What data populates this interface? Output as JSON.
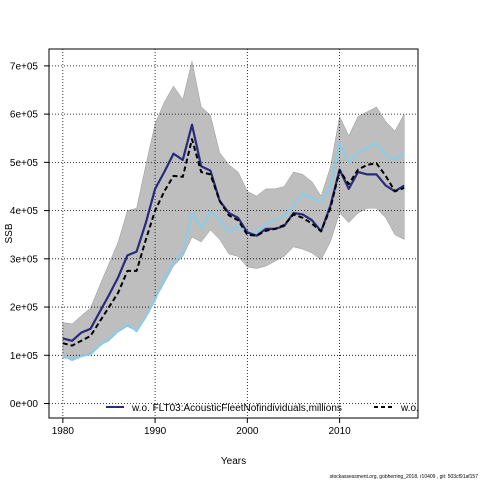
{
  "chart_data": {
    "type": "line",
    "title": "",
    "xlabel": "Years",
    "ylabel": "SSB",
    "xlim": [
      1978.5,
      2018.5
    ],
    "ylim": [
      -30000,
      735000
    ],
    "xticks": [
      1980,
      1990,
      2000,
      2010
    ],
    "yticks": [
      0,
      100000,
      200000,
      300000,
      400000,
      500000,
      600000,
      700000
    ],
    "yticklabels": [
      "0e+00",
      "1e+05",
      "2e+05",
      "3e+05",
      "4e+05",
      "5e+05",
      "6e+05",
      "7e+05"
    ],
    "grid": true,
    "legend": {
      "placement": "bottom",
      "labels": [
        "w.o. FLT03:AcousticFleetNofindividuals,millions",
        "w.o."
      ]
    },
    "colors": {
      "band": "#bebebe",
      "main": "#2a2a7a",
      "dashed": "#000000",
      "alt": "#87ceeb",
      "grid": "#000000"
    },
    "years": [
      1980,
      1981,
      1982,
      1983,
      1984,
      1985,
      1986,
      1987,
      1988,
      1989,
      1990,
      1991,
      1992,
      1993,
      1994,
      1995,
      1996,
      1997,
      1998,
      1999,
      2000,
      2001,
      2002,
      2003,
      2004,
      2005,
      2006,
      2007,
      2008,
      2009,
      2010,
      2011,
      2012,
      2013,
      2014,
      2015,
      2016,
      2017
    ],
    "series": [
      {
        "style": "solid-dark",
        "values": [
          135000,
          130000,
          147000,
          155000,
          190000,
          225000,
          262000,
          307000,
          315000,
          375000,
          445000,
          480000,
          518000,
          505000,
          578000,
          492000,
          483000,
          420000,
          395000,
          385000,
          355000,
          348000,
          362000,
          362000,
          368000,
          395000,
          392000,
          380000,
          357000,
          410000,
          485000,
          445000,
          480000,
          475000,
          475000,
          452000,
          440000,
          452000
        ]
      },
      {
        "style": "dashed-black",
        "values": [
          125000,
          120000,
          130000,
          140000,
          170000,
          200000,
          230000,
          275000,
          275000,
          340000,
          400000,
          440000,
          472000,
          470000,
          548000,
          480000,
          475000,
          420000,
          390000,
          380000,
          350000,
          348000,
          358000,
          362000,
          370000,
          392000,
          385000,
          373000,
          357000,
          405000,
          483000,
          455000,
          485000,
          495000,
          498000,
          472000,
          440000,
          447000
        ]
      },
      {
        "style": "solid-lightblue",
        "values": [
          100000,
          90000,
          98000,
          102000,
          120000,
          135000,
          150000,
          165000,
          150000,
          180000,
          215000,
          260000,
          292000,
          312000,
          395000,
          365000,
          398000,
          382000,
          355000,
          370000,
          353000,
          355000,
          372000,
          380000,
          390000,
          410000,
          435000,
          425000,
          418000,
          450000,
          540000,
          500000,
          520000,
          530000,
          540000,
          515000,
          505000,
          520000
        ]
      }
    ],
    "band_lower": [
      95000,
      92000,
      98000,
      105000,
      120000,
      130000,
      148000,
      160000,
      150000,
      180000,
      215000,
      250000,
      285000,
      305000,
      345000,
      335000,
      360000,
      340000,
      310000,
      305000,
      283000,
      280000,
      285000,
      295000,
      305000,
      325000,
      320000,
      312000,
      298000,
      335000,
      395000,
      375000,
      395000,
      405000,
      405000,
      385000,
      350000,
      340000
    ],
    "band_upper": [
      168000,
      165000,
      182000,
      198000,
      245000,
      290000,
      335000,
      400000,
      405000,
      495000,
      580000,
      625000,
      658000,
      630000,
      710000,
      615000,
      598000,
      520000,
      495000,
      480000,
      440000,
      430000,
      445000,
      445000,
      450000,
      480000,
      475000,
      460000,
      430000,
      490000,
      595000,
      555000,
      595000,
      605000,
      615000,
      585000,
      565000,
      600000
    ]
  },
  "footer": "stockassessment.org, gobherring_2018, r10409 , git: 503cf91af157"
}
